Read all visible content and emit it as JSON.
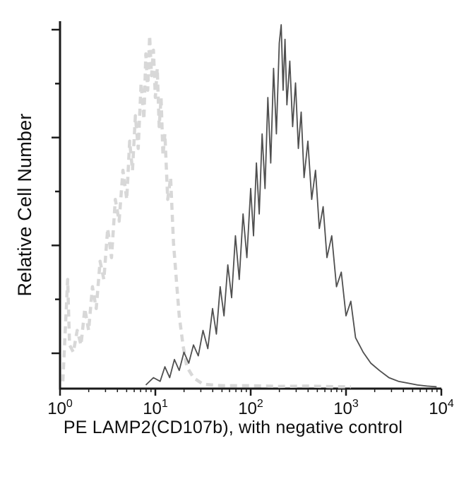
{
  "chart_data": {
    "type": "line",
    "title": "",
    "xlabel": "PE LAMP2(CD107b), with negative control",
    "ylabel": "Relative Cell Number",
    "x_scale": "log10",
    "x_range_decades": [
      0,
      4
    ],
    "x_tick_base": "10",
    "x_tick_exponents": [
      0,
      1,
      2,
      3,
      4
    ],
    "y_tick_count": 7,
    "ylim": [
      0,
      1
    ],
    "grid": false,
    "legend": null,
    "axis_color": "#1a1a1a",
    "series": [
      {
        "name": "negative control",
        "style": "dashed",
        "color": "#d8d8d8",
        "width": 4.5,
        "peak_x_approx": 9,
        "points": [
          [
            0.03,
            0.02
          ],
          [
            0.08,
            0.3
          ],
          [
            0.1,
            0.12
          ],
          [
            0.14,
            0.1
          ],
          [
            0.18,
            0.16
          ],
          [
            0.22,
            0.12
          ],
          [
            0.26,
            0.22
          ],
          [
            0.3,
            0.16
          ],
          [
            0.34,
            0.28
          ],
          [
            0.38,
            0.22
          ],
          [
            0.42,
            0.35
          ],
          [
            0.46,
            0.3
          ],
          [
            0.5,
            0.44
          ],
          [
            0.54,
            0.36
          ],
          [
            0.58,
            0.52
          ],
          [
            0.62,
            0.46
          ],
          [
            0.66,
            0.6
          ],
          [
            0.7,
            0.52
          ],
          [
            0.73,
            0.68
          ],
          [
            0.76,
            0.6
          ],
          [
            0.79,
            0.75
          ],
          [
            0.82,
            0.66
          ],
          [
            0.85,
            0.84
          ],
          [
            0.88,
            0.74
          ],
          [
            0.9,
            0.92
          ],
          [
            0.92,
            0.82
          ],
          [
            0.94,
            0.97
          ],
          [
            0.96,
            0.86
          ],
          [
            0.98,
            0.93
          ],
          [
            1.0,
            0.8
          ],
          [
            1.02,
            0.88
          ],
          [
            1.04,
            0.72
          ],
          [
            1.06,
            0.8
          ],
          [
            1.08,
            0.64
          ],
          [
            1.1,
            0.7
          ],
          [
            1.13,
            0.52
          ],
          [
            1.16,
            0.58
          ],
          [
            1.19,
            0.4
          ],
          [
            1.22,
            0.3
          ],
          [
            1.25,
            0.2
          ],
          [
            1.29,
            0.12
          ],
          [
            1.33,
            0.06
          ],
          [
            1.4,
            0.03
          ],
          [
            1.5,
            0.012
          ],
          [
            1.7,
            0.008
          ],
          [
            2.0,
            0.008
          ],
          [
            2.3,
            0.006
          ],
          [
            2.6,
            0.007
          ],
          [
            2.9,
            0.005
          ],
          [
            3.05,
            0.005
          ]
        ]
      },
      {
        "name": "PE LAMP2(CD107b)",
        "style": "solid",
        "color": "#4f4f4f",
        "width": 1.8,
        "peak_x_approx": 200,
        "points": [
          [
            0.9,
            0.01
          ],
          [
            0.98,
            0.03
          ],
          [
            1.05,
            0.02
          ],
          [
            1.1,
            0.06
          ],
          [
            1.15,
            0.03
          ],
          [
            1.2,
            0.08
          ],
          [
            1.25,
            0.05
          ],
          [
            1.3,
            0.1
          ],
          [
            1.35,
            0.07
          ],
          [
            1.4,
            0.12
          ],
          [
            1.45,
            0.09
          ],
          [
            1.5,
            0.16
          ],
          [
            1.55,
            0.11
          ],
          [
            1.6,
            0.22
          ],
          [
            1.64,
            0.15
          ],
          [
            1.68,
            0.28
          ],
          [
            1.72,
            0.2
          ],
          [
            1.76,
            0.34
          ],
          [
            1.8,
            0.25
          ],
          [
            1.84,
            0.42
          ],
          [
            1.88,
            0.3
          ],
          [
            1.92,
            0.48
          ],
          [
            1.96,
            0.36
          ],
          [
            2.0,
            0.55
          ],
          [
            2.03,
            0.42
          ],
          [
            2.06,
            0.62
          ],
          [
            2.09,
            0.48
          ],
          [
            2.12,
            0.7
          ],
          [
            2.15,
            0.55
          ],
          [
            2.18,
            0.8
          ],
          [
            2.21,
            0.62
          ],
          [
            2.24,
            0.88
          ],
          [
            2.27,
            0.7
          ],
          [
            2.3,
            0.95
          ],
          [
            2.32,
            1.0
          ],
          [
            2.34,
            0.82
          ],
          [
            2.36,
            0.96
          ],
          [
            2.38,
            0.78
          ],
          [
            2.41,
            0.9
          ],
          [
            2.44,
            0.72
          ],
          [
            2.47,
            0.84
          ],
          [
            2.5,
            0.66
          ],
          [
            2.53,
            0.76
          ],
          [
            2.56,
            0.58
          ],
          [
            2.6,
            0.68
          ],
          [
            2.64,
            0.52
          ],
          [
            2.68,
            0.6
          ],
          [
            2.72,
            0.44
          ],
          [
            2.76,
            0.5
          ],
          [
            2.8,
            0.36
          ],
          [
            2.85,
            0.42
          ],
          [
            2.9,
            0.28
          ],
          [
            2.95,
            0.32
          ],
          [
            3.0,
            0.2
          ],
          [
            3.05,
            0.24
          ],
          [
            3.1,
            0.14
          ],
          [
            3.18,
            0.1
          ],
          [
            3.26,
            0.07
          ],
          [
            3.35,
            0.05
          ],
          [
            3.45,
            0.03
          ],
          [
            3.55,
            0.02
          ],
          [
            3.65,
            0.015
          ],
          [
            3.75,
            0.01
          ],
          [
            3.85,
            0.007
          ],
          [
            3.95,
            0.005
          ]
        ]
      }
    ]
  }
}
